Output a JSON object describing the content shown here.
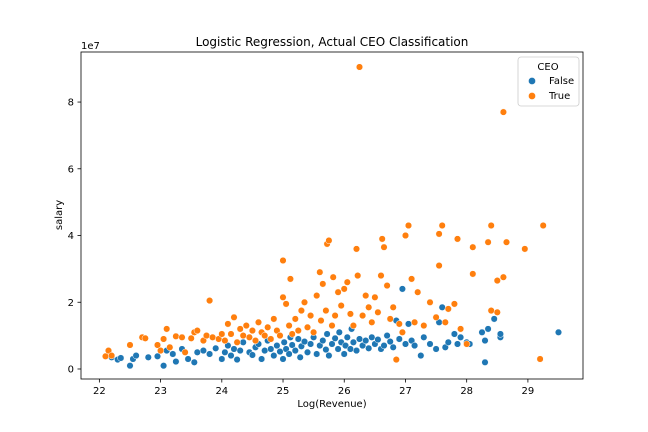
{
  "chart_data": {
    "type": "scatter",
    "title": "Logistic Regression, Actual CEO Classification",
    "xlabel": "Log(Revenue)",
    "ylabel": "salary",
    "y_offset_label": "1e7",
    "xlim": [
      21.7,
      29.9
    ],
    "ylim": [
      -0.3,
      9.5
    ],
    "y_scale_factor": 10000000,
    "xticks": [
      22,
      23,
      24,
      25,
      26,
      27,
      28,
      29
    ],
    "yticks": [
      0,
      2,
      4,
      6,
      8
    ],
    "grid": false,
    "legend": {
      "title": "CEO",
      "placement": "top-right",
      "entries": [
        "False",
        "True"
      ]
    },
    "colors": {
      "False": "#1f77b4",
      "True": "#ff7f0e"
    },
    "series": [
      {
        "name": "False",
        "note": "salary values in units of 1e7",
        "points": [
          [
            22.2,
            0.35
          ],
          [
            22.3,
            0.28
          ],
          [
            22.35,
            0.33
          ],
          [
            22.5,
            0.1
          ],
          [
            22.55,
            0.3
          ],
          [
            22.6,
            0.4
          ],
          [
            22.8,
            0.35
          ],
          [
            22.95,
            0.38
          ],
          [
            23.05,
            0.1
          ],
          [
            23.1,
            0.55
          ],
          [
            23.2,
            0.45
          ],
          [
            23.25,
            0.22
          ],
          [
            23.35,
            0.6
          ],
          [
            23.45,
            0.3
          ],
          [
            23.55,
            0.2
          ],
          [
            23.6,
            0.5
          ],
          [
            23.7,
            0.55
          ],
          [
            23.8,
            0.45
          ],
          [
            23.9,
            0.62
          ],
          [
            24.0,
            0.3
          ],
          [
            24.05,
            0.5
          ],
          [
            24.1,
            0.7
          ],
          [
            24.15,
            0.4
          ],
          [
            24.2,
            0.6
          ],
          [
            24.25,
            0.28
          ],
          [
            24.3,
            0.55
          ],
          [
            24.35,
            0.8
          ],
          [
            24.45,
            0.5
          ],
          [
            24.5,
            0.42
          ],
          [
            24.55,
            0.65
          ],
          [
            24.6,
            0.75
          ],
          [
            24.65,
            0.3
          ],
          [
            24.7,
            0.55
          ],
          [
            24.75,
            0.85
          ],
          [
            24.8,
            0.6
          ],
          [
            24.85,
            0.4
          ],
          [
            24.9,
            0.7
          ],
          [
            24.95,
            0.52
          ],
          [
            25.0,
            0.3
          ],
          [
            25.02,
            0.8
          ],
          [
            25.05,
            0.6
          ],
          [
            25.1,
            0.45
          ],
          [
            25.12,
            0.95
          ],
          [
            25.15,
            0.72
          ],
          [
            25.2,
            0.55
          ],
          [
            25.25,
            0.9
          ],
          [
            25.28,
            0.35
          ],
          [
            25.3,
            0.68
          ],
          [
            25.35,
            0.82
          ],
          [
            25.4,
            0.5
          ],
          [
            25.45,
            0.75
          ],
          [
            25.5,
            0.95
          ],
          [
            25.55,
            0.45
          ],
          [
            25.6,
            0.7
          ],
          [
            25.65,
            0.85
          ],
          [
            25.7,
            0.58
          ],
          [
            25.72,
            1.05
          ],
          [
            25.75,
            0.4
          ],
          [
            25.8,
            0.75
          ],
          [
            25.85,
            0.92
          ],
          [
            25.9,
            0.6
          ],
          [
            25.92,
            1.1
          ],
          [
            25.95,
            0.8
          ],
          [
            26.0,
            0.45
          ],
          [
            26.02,
            0.7
          ],
          [
            26.05,
            0.95
          ],
          [
            26.1,
            0.6
          ],
          [
            26.12,
            1.2
          ],
          [
            26.15,
            0.8
          ],
          [
            26.2,
            0.55
          ],
          [
            26.25,
            0.9
          ],
          [
            26.3,
            0.7
          ],
          [
            26.35,
            0.85
          ],
          [
            26.4,
            0.62
          ],
          [
            26.45,
            0.95
          ],
          [
            26.5,
            0.75
          ],
          [
            26.55,
            0.88
          ],
          [
            26.6,
            0.6
          ],
          [
            26.65,
            0.7
          ],
          [
            26.7,
            1.0
          ],
          [
            26.75,
            0.82
          ],
          [
            26.8,
            0.65
          ],
          [
            26.85,
            1.45
          ],
          [
            26.9,
            0.9
          ],
          [
            26.95,
            2.4
          ],
          [
            27.0,
            0.75
          ],
          [
            27.05,
            1.35
          ],
          [
            27.1,
            0.85
          ],
          [
            27.15,
            0.7
          ],
          [
            27.25,
            0.4
          ],
          [
            27.3,
            0.95
          ],
          [
            27.4,
            0.75
          ],
          [
            27.5,
            0.6
          ],
          [
            27.55,
            1.4
          ],
          [
            27.6,
            1.85
          ],
          [
            27.65,
            0.65
          ],
          [
            27.7,
            0.8
          ],
          [
            27.8,
            1.05
          ],
          [
            27.85,
            0.75
          ],
          [
            27.9,
            0.95
          ],
          [
            28.0,
            0.8
          ],
          [
            28.05,
            0.75
          ],
          [
            28.25,
            1.1
          ],
          [
            28.3,
            0.85
          ],
          [
            28.3,
            0.2
          ],
          [
            28.35,
            1.2
          ],
          [
            28.45,
            1.5
          ],
          [
            28.55,
            0.95
          ],
          [
            28.55,
            1.05
          ],
          [
            29.5,
            1.1
          ]
        ]
      },
      {
        "name": "True",
        "note": "salary values in units of 1e7",
        "points": [
          [
            22.1,
            0.38
          ],
          [
            22.15,
            0.55
          ],
          [
            22.2,
            0.4
          ],
          [
            22.5,
            0.72
          ],
          [
            22.7,
            0.95
          ],
          [
            22.75,
            0.92
          ],
          [
            22.95,
            0.72
          ],
          [
            23.0,
            0.55
          ],
          [
            23.05,
            0.9
          ],
          [
            23.1,
            1.2
          ],
          [
            23.15,
            0.65
          ],
          [
            23.25,
            0.98
          ],
          [
            23.35,
            0.95
          ],
          [
            23.4,
            0.5
          ],
          [
            23.5,
            0.92
          ],
          [
            23.55,
            1.1
          ],
          [
            23.6,
            1.15
          ],
          [
            23.7,
            0.85
          ],
          [
            23.75,
            1.0
          ],
          [
            23.8,
            2.05
          ],
          [
            23.85,
            0.95
          ],
          [
            23.95,
            0.9
          ],
          [
            24.0,
            1.05
          ],
          [
            24.05,
            0.85
          ],
          [
            24.1,
            1.35
          ],
          [
            24.15,
            1.05
          ],
          [
            24.2,
            1.55
          ],
          [
            24.25,
            0.8
          ],
          [
            24.3,
            1.2
          ],
          [
            24.35,
            1.0
          ],
          [
            24.4,
            1.3
          ],
          [
            24.45,
            0.95
          ],
          [
            24.5,
            1.15
          ],
          [
            24.55,
            0.85
          ],
          [
            24.6,
            1.4
          ],
          [
            24.65,
            1.1
          ],
          [
            24.7,
            1.0
          ],
          [
            24.75,
            1.25
          ],
          [
            24.8,
            0.9
          ],
          [
            24.85,
            1.5
          ],
          [
            24.9,
            1.15
          ],
          [
            24.95,
            1.0
          ],
          [
            25.0,
            3.25
          ],
          [
            25.0,
            2.15
          ],
          [
            25.05,
            1.95
          ],
          [
            25.1,
            1.3
          ],
          [
            25.12,
            2.7
          ],
          [
            25.15,
            1.05
          ],
          [
            25.2,
            1.5
          ],
          [
            25.25,
            1.15
          ],
          [
            25.3,
            1.75
          ],
          [
            25.35,
            2.0
          ],
          [
            25.4,
            1.25
          ],
          [
            25.45,
            1.6
          ],
          [
            25.5,
            1.1
          ],
          [
            25.55,
            2.2
          ],
          [
            25.6,
            2.9
          ],
          [
            25.62,
            1.45
          ],
          [
            25.65,
            2.55
          ],
          [
            25.7,
            1.75
          ],
          [
            25.72,
            3.75
          ],
          [
            25.75,
            3.85
          ],
          [
            25.8,
            1.3
          ],
          [
            25.82,
            2.75
          ],
          [
            25.85,
            1.6
          ],
          [
            25.9,
            2.3
          ],
          [
            25.95,
            1.9
          ],
          [
            26.0,
            2.4
          ],
          [
            26.05,
            2.6
          ],
          [
            26.1,
            1.65
          ],
          [
            26.15,
            1.3
          ],
          [
            26.2,
            3.6
          ],
          [
            26.22,
            2.8
          ],
          [
            26.25,
            9.05
          ],
          [
            26.3,
            1.6
          ],
          [
            26.35,
            2.2
          ],
          [
            26.4,
            1.85
          ],
          [
            26.45,
            1.4
          ],
          [
            26.5,
            2.15
          ],
          [
            26.55,
            1.7
          ],
          [
            26.6,
            2.8
          ],
          [
            26.62,
            3.9
          ],
          [
            26.65,
            3.65
          ],
          [
            26.7,
            2.5
          ],
          [
            26.75,
            1.5
          ],
          [
            26.8,
            1.85
          ],
          [
            26.85,
            0.28
          ],
          [
            26.9,
            1.35
          ],
          [
            26.95,
            1.1
          ],
          [
            27.0,
            4.0
          ],
          [
            27.05,
            4.3
          ],
          [
            27.1,
            2.7
          ],
          [
            27.15,
            1.4
          ],
          [
            27.2,
            2.3
          ],
          [
            27.3,
            1.3
          ],
          [
            27.4,
            2.0
          ],
          [
            27.5,
            1.55
          ],
          [
            27.55,
            3.1
          ],
          [
            27.55,
            4.05
          ],
          [
            27.6,
            4.3
          ],
          [
            27.65,
            1.4
          ],
          [
            27.7,
            1.8
          ],
          [
            27.8,
            1.95
          ],
          [
            27.85,
            3.9
          ],
          [
            27.9,
            1.2
          ],
          [
            28.0,
            0.75
          ],
          [
            28.1,
            2.85
          ],
          [
            28.1,
            3.65
          ],
          [
            28.35,
            3.8
          ],
          [
            28.4,
            1.75
          ],
          [
            28.4,
            4.3
          ],
          [
            28.5,
            2.65
          ],
          [
            28.5,
            1.7
          ],
          [
            28.6,
            2.75
          ],
          [
            28.6,
            7.7
          ],
          [
            28.65,
            3.8
          ],
          [
            28.95,
            3.6
          ],
          [
            29.2,
            0.3
          ],
          [
            29.25,
            4.3
          ]
        ]
      }
    ]
  }
}
